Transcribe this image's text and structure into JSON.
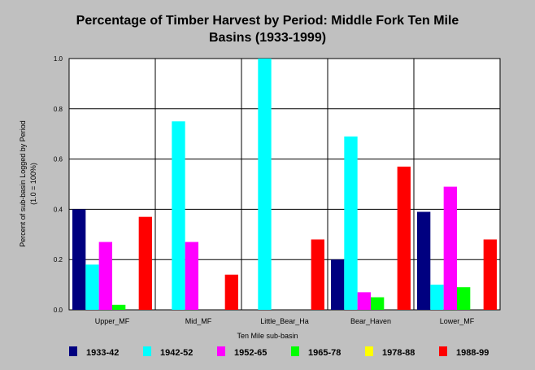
{
  "chart_data": {
    "type": "bar",
    "title_line1": "Percentage of Timber Harvest by Period: Middle Fork Ten Mile",
    "title_line2": "Basins (1933-1999)",
    "ylabel_line1": "Percent of sub-basin Logged by Period",
    "ylabel_line2": "(1.0 = 100%)",
    "xlabel": "Ten Mile sub-basin",
    "ylim": [
      0,
      1.0
    ],
    "yticks": [
      "0.0",
      "0.2",
      "0.4",
      "0.6",
      "0.8",
      "1.0"
    ],
    "grid": true,
    "legend_position": "bottom",
    "categories": [
      "Upper_MF",
      "Mid_MF",
      "Little_Bear_Ha",
      "Bear_Haven",
      "Lower_MF"
    ],
    "series": [
      {
        "name": "1933-42",
        "color": "#000080",
        "values": [
          0.4,
          0.0,
          0.0,
          0.2,
          0.39
        ]
      },
      {
        "name": "1942-52",
        "color": "#00ffff",
        "values": [
          0.18,
          0.75,
          1.0,
          0.69,
          0.1
        ]
      },
      {
        "name": "1952-65",
        "color": "#ff00ff",
        "values": [
          0.27,
          0.27,
          0.0,
          0.07,
          0.49
        ]
      },
      {
        "name": "1965-78",
        "color": "#00ff00",
        "values": [
          0.02,
          0.0,
          0.0,
          0.05,
          0.09
        ]
      },
      {
        "name": "1978-88",
        "color": "#ffff00",
        "values": [
          0.0,
          0.0,
          0.0,
          0.0,
          0.0
        ]
      },
      {
        "name": "1988-99",
        "color": "#ff0000",
        "values": [
          0.37,
          0.14,
          0.28,
          0.57,
          0.28
        ]
      }
    ]
  }
}
